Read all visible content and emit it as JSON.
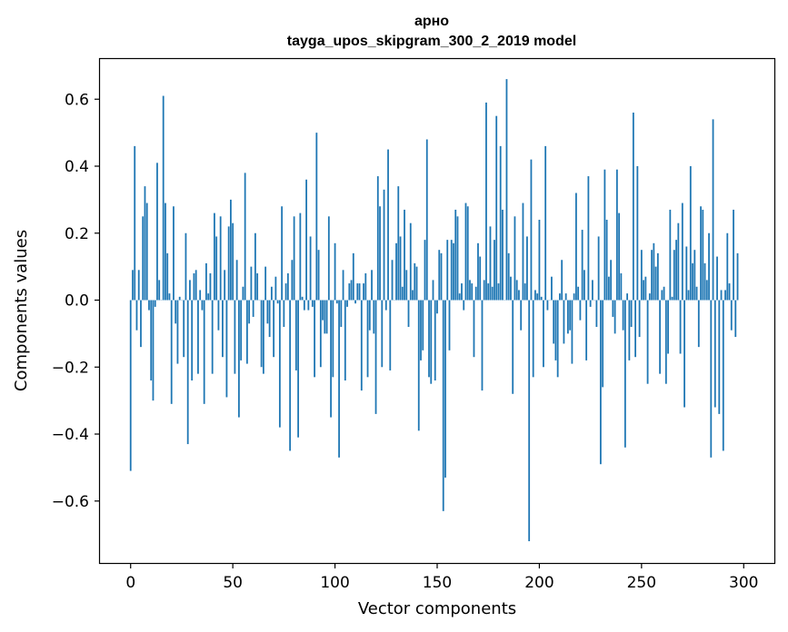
{
  "chart_data": {
    "type": "bar",
    "title": "арно",
    "subtitle": "tayga_upos_skipgram_300_2_2019 model",
    "xlabel": "Vector components",
    "ylabel": "Components values",
    "xlim": [
      -15,
      315
    ],
    "ylim": [
      -0.785,
      0.72
    ],
    "xticks": [
      0,
      50,
      100,
      150,
      200,
      250,
      300
    ],
    "yticks": [
      -0.6,
      -0.4,
      -0.2,
      0.0,
      0.2,
      0.4,
      0.6
    ],
    "ytick_labels": [
      "−0.6",
      "−0.4",
      "−0.2",
      "0.0",
      "0.2",
      "0.4",
      "0.6"
    ],
    "bar_color": "#1f77b4",
    "grid": false,
    "values": [
      -0.51,
      0.09,
      0.46,
      -0.09,
      0.09,
      -0.14,
      0.25,
      0.34,
      0.29,
      -0.03,
      -0.24,
      -0.3,
      -0.02,
      0.41,
      0.06,
      0.0,
      0.61,
      0.29,
      0.14,
      0.02,
      -0.31,
      0.28,
      -0.07,
      -0.19,
      0.01,
      0.0,
      -0.17,
      0.2,
      -0.43,
      0.06,
      -0.24,
      0.08,
      0.09,
      -0.22,
      0.03,
      -0.03,
      -0.31,
      0.11,
      0.02,
      0.08,
      -0.22,
      0.26,
      0.19,
      -0.09,
      0.25,
      -0.17,
      0.09,
      -0.29,
      0.22,
      0.3,
      0.23,
      -0.22,
      0.12,
      -0.35,
      -0.18,
      0.04,
      0.38,
      -0.19,
      -0.07,
      0.1,
      -0.05,
      0.2,
      0.08,
      0.0,
      -0.2,
      -0.22,
      0.1,
      -0.07,
      -0.11,
      0.04,
      -0.17,
      0.07,
      -0.01,
      -0.38,
      0.28,
      -0.08,
      0.05,
      0.08,
      -0.45,
      0.12,
      0.25,
      -0.21,
      -0.41,
      0.26,
      0.01,
      -0.03,
      0.36,
      -0.03,
      0.19,
      -0.02,
      -0.23,
      0.5,
      0.15,
      -0.2,
      -0.06,
      -0.1,
      -0.1,
      0.25,
      -0.35,
      -0.23,
      0.17,
      -0.01,
      -0.47,
      -0.08,
      0.09,
      -0.24,
      -0.02,
      0.05,
      0.06,
      0.14,
      -0.01,
      0.05,
      0.05,
      -0.27,
      0.05,
      0.08,
      -0.23,
      -0.09,
      0.09,
      -0.1,
      -0.34,
      0.37,
      0.28,
      -0.2,
      0.33,
      -0.03,
      0.45,
      -0.21,
      0.12,
      0.0,
      0.17,
      0.34,
      0.19,
      0.04,
      0.27,
      0.09,
      -0.08,
      0.23,
      0.03,
      0.11,
      0.1,
      -0.39,
      -0.18,
      -0.15,
      0.18,
      0.48,
      -0.23,
      -0.25,
      0.06,
      -0.24,
      -0.04,
      0.15,
      0.14,
      -0.63,
      -0.53,
      0.18,
      -0.15,
      0.18,
      0.17,
      0.27,
      0.25,
      0.02,
      0.05,
      -0.03,
      0.29,
      0.28,
      0.06,
      0.05,
      -0.17,
      0.04,
      0.17,
      0.13,
      -0.27,
      0.06,
      0.59,
      0.05,
      0.22,
      0.04,
      0.18,
      0.55,
      0.05,
      0.46,
      0.27,
      0.0,
      0.66,
      0.14,
      0.07,
      -0.28,
      0.25,
      0.06,
      0.03,
      -0.09,
      0.29,
      0.05,
      0.19,
      -0.72,
      0.42,
      -0.23,
      0.03,
      0.02,
      0.24,
      0.01,
      -0.2,
      0.46,
      -0.03,
      0.0,
      0.07,
      -0.13,
      -0.18,
      -0.23,
      0.02,
      0.12,
      -0.13,
      0.02,
      -0.1,
      -0.09,
      -0.19,
      0.02,
      0.32,
      0.04,
      -0.06,
      0.21,
      0.09,
      -0.18,
      0.37,
      -0.02,
      0.06,
      0.0,
      -0.08,
      0.19,
      -0.49,
      -0.26,
      0.39,
      0.24,
      0.07,
      0.12,
      -0.05,
      -0.1,
      0.39,
      0.26,
      0.08,
      -0.09,
      -0.44,
      0.02,
      -0.18,
      -0.08,
      0.56,
      -0.17,
      0.4,
      -0.11,
      0.15,
      0.06,
      0.07,
      -0.25,
      0.02,
      0.15,
      0.17,
      0.1,
      0.14,
      -0.22,
      0.03,
      0.04,
      -0.25,
      -0.16,
      0.27,
      0.01,
      0.15,
      0.18,
      0.23,
      -0.16,
      0.29,
      -0.32,
      0.16,
      0.03,
      0.4,
      0.11,
      0.15,
      0.04,
      -0.14,
      0.28,
      0.27,
      0.11,
      0.06,
      0.2,
      -0.47,
      0.54,
      -0.32,
      0.13,
      -0.34,
      0.03,
      -0.45,
      0.03,
      0.2,
      0.05,
      -0.09,
      0.27,
      -0.11,
      0.14
    ]
  }
}
